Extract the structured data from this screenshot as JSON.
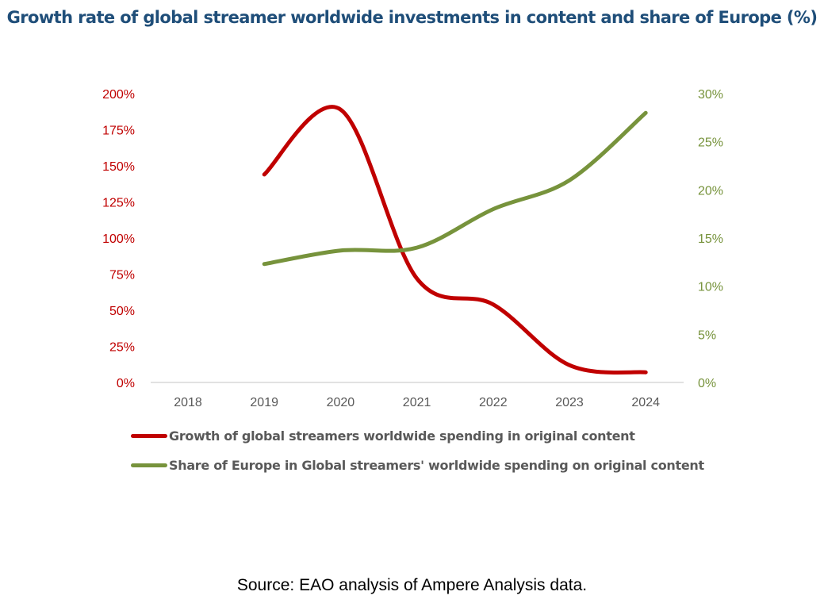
{
  "chart_data": {
    "type": "line",
    "title": "Growth rate of global  streamer worldwide  investments in content and share of Europe (%)",
    "categories": [
      "2018",
      "2019",
      "2020",
      "2021",
      "2022",
      "2023",
      "2024"
    ],
    "y_left": {
      "min": 0,
      "max": 200,
      "ticks": [
        "0%",
        "25%",
        "50%",
        "75%",
        "100%",
        "125%",
        "150%",
        "175%",
        "200%"
      ],
      "color": "#c00000"
    },
    "y_right": {
      "min": 0,
      "max": 30,
      "ticks": [
        "0%",
        "5%",
        "10%",
        "15%",
        "20%",
        "25%",
        "30%"
      ],
      "color": "#77933c"
    },
    "grid": false,
    "smooth": true,
    "legend_position": "bottom",
    "series": [
      {
        "name": "Growth of global streamers worldwide spending in original content",
        "axis": "left",
        "color": "#c00000",
        "values": [
          null,
          144,
          189,
          72,
          54,
          12,
          7
        ]
      },
      {
        "name": "Share of Europe in Global streamers' worldwide spending on original content",
        "axis": "right",
        "color": "#77933c",
        "values": [
          null,
          12.3,
          13.7,
          14.0,
          18.0,
          21.0,
          28.0
        ]
      }
    ]
  },
  "source": "Source: EAO analysis of Ampere Analysis data."
}
